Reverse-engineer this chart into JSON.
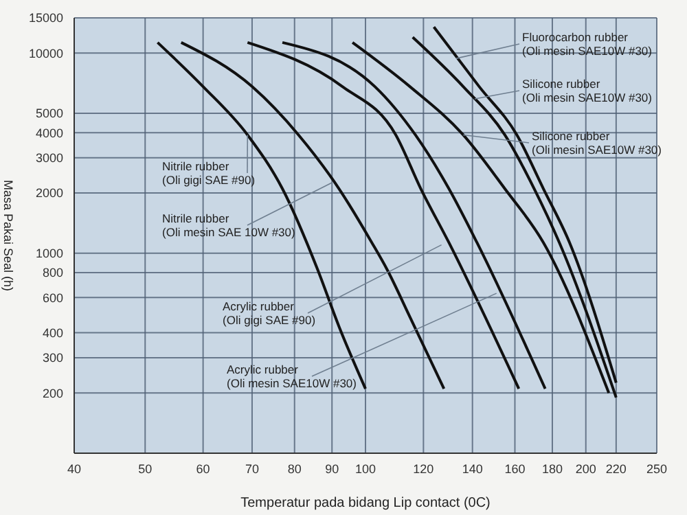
{
  "chart_data": {
    "type": "line",
    "xlabel": "Temperatur pada bidang Lip contact (0C)",
    "ylabel": "Masa Pakai Seal (h)",
    "log": "xy",
    "xlim": [
      40,
      250
    ],
    "xticks": [
      40,
      50,
      60,
      70,
      80,
      90,
      100,
      120,
      140,
      160,
      180,
      200,
      220,
      250
    ],
    "ylim": [
      100,
      15000
    ],
    "yticks": [
      200,
      300,
      400,
      600,
      800,
      1000,
      2000,
      3000,
      4000,
      5000,
      10000,
      15000
    ],
    "grid": true,
    "marker": "none",
    "line_style": "solid",
    "series": [
      {
        "color": "#111111",
        "x": [
          52,
          60,
          69,
          77,
          86,
          92,
          100
        ],
        "values": [
          11300,
          6800,
          3900,
          2100,
          830,
          430,
          210
        ]
      },
      {
        "color": "#111111",
        "x": [
          56,
          70,
          81,
          92,
          102,
          107,
          115,
          128
        ],
        "values": [
          11300,
          6800,
          3900,
          2100,
          1130,
          830,
          480,
          210
        ]
      },
      {
        "color": "#111111",
        "x": [
          69,
          93,
          110,
          119,
          130,
          162
        ],
        "values": [
          11300,
          6800,
          3900,
          2100,
          1130,
          210
        ]
      },
      {
        "color": "#111111",
        "x": [
          77,
          103,
          117,
          130,
          142,
          176
        ],
        "values": [
          11300,
          6800,
          3900,
          2100,
          1130,
          210
        ]
      },
      {
        "color": "#111111",
        "x": [
          96,
          115,
          136,
          155,
          175,
          215
        ],
        "values": [
          11300,
          6800,
          3900,
          2100,
          1130,
          200
        ]
      },
      {
        "color": "#111111",
        "x": [
          116,
          136,
          155,
          170,
          184,
          220
        ],
        "values": [
          12000,
          6800,
          3900,
          2100,
          1130,
          190
        ]
      },
      {
        "color": "#111111",
        "x": [
          124,
          143,
          161,
          175,
          190,
          220
        ],
        "values": [
          13500,
          6800,
          3900,
          2100,
          1130,
          225
        ]
      }
    ],
    "annotations": [
      {
        "text": "Nitrile rubber\n(Oli gigi SAE #90)",
        "x": 69,
        "y": 3900
      },
      {
        "text": "Nitrile rubber\n(Oli mesin SAE 10W #30)",
        "x": 90,
        "y": 2250
      },
      {
        "text": "Acrylic rubber\n(Oli gigi SAE #90)",
        "x": 127,
        "y": 1100
      },
      {
        "text": "Acrylic rubber\n(Oli mesin SAE10W #30)",
        "x": 151,
        "y": 630
      },
      {
        "text": "Fluorocarbon rubber\n(Oli mesin SAE10W #30)",
        "x": 133,
        "y": 9400
      },
      {
        "text": "Silicone rubber\n(Oli mesin SAE10W #30)",
        "x": 141,
        "y": 5900
      },
      {
        "text": "Silicone rubber\n(Oli mesin SAE10W #30)",
        "x": 136,
        "y": 3900
      }
    ]
  }
}
